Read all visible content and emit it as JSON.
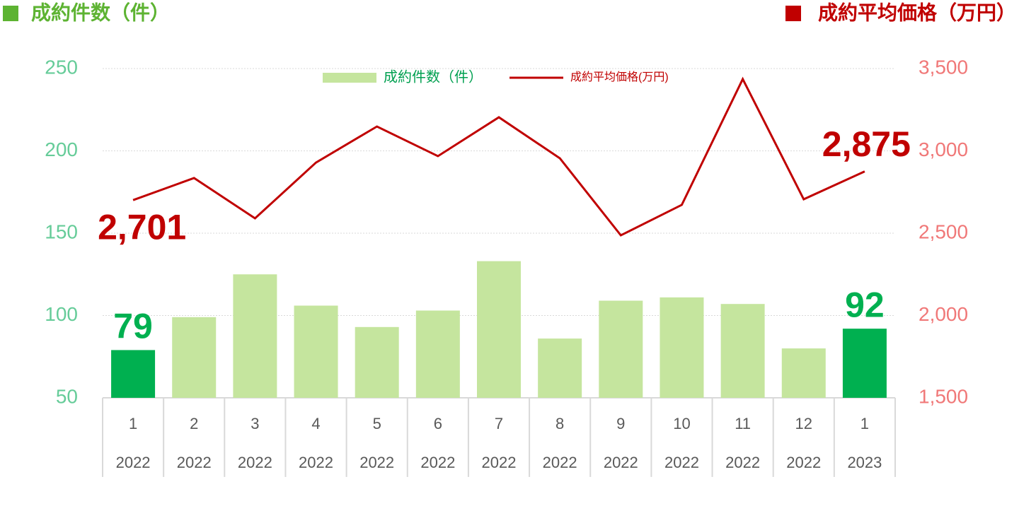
{
  "chart_data": {
    "type": "bar_line",
    "left_title": "成約件数（件）",
    "left_title_color": "#5db332",
    "right_title": "成約平均価格（万円）",
    "right_title_color": "#c00000",
    "categories": [
      "1",
      "2",
      "3",
      "4",
      "5",
      "6",
      "7",
      "8",
      "9",
      "10",
      "11",
      "12",
      "1"
    ],
    "category_years": [
      "2022",
      "2022",
      "2022",
      "2022",
      "2022",
      "2022",
      "2022",
      "2022",
      "2022",
      "2022",
      "2022",
      "2022",
      "2023"
    ],
    "series": [
      {
        "name": "成約件数（件）",
        "color": "#c5e59e",
        "highlight_color": "#00b050",
        "highlight": [
          0,
          12
        ],
        "values": [
          79,
          99,
          125,
          106,
          93,
          103,
          133,
          86,
          109,
          111,
          107,
          80,
          92
        ]
      },
      {
        "name": "成約平均価格(万円)",
        "color": "#c00000",
        "axis": "y2",
        "values": [
          2701,
          2835,
          2590,
          2929,
          3148,
          2968,
          3204,
          2955,
          2487,
          2672,
          3436,
          2706,
          2875
        ],
        "value_labels": [
          "2,701",
          null,
          null,
          null,
          null,
          null,
          null,
          null,
          null,
          null,
          null,
          null,
          "2,875"
        ]
      }
    ],
    "ylim": [
      50,
      250
    ],
    "yticks": [
      50,
      100,
      150,
      200,
      250
    ],
    "ytick_color": "#66cc99",
    "y2lim": [
      1500,
      3500
    ],
    "y2ticks": [
      {
        "value": 1500,
        "label": "1,500"
      },
      {
        "value": 2000,
        "label": "2,000"
      },
      {
        "value": 2500,
        "label": "2,500"
      },
      {
        "value": 3000,
        "label": "3,000"
      },
      {
        "value": 3500,
        "label": "3,500"
      }
    ],
    "y2tick_color": "#f07878",
    "grid": true
  }
}
